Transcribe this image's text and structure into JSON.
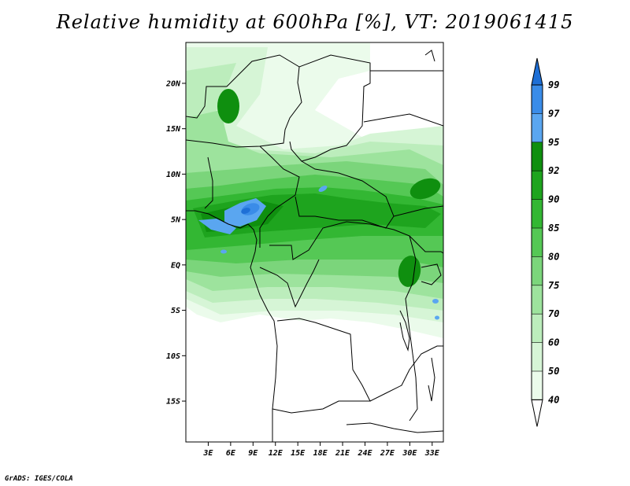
{
  "title": "Relative humidity at 600hPa [%], VT: 2019061415",
  "footer": "GrADS: IGES/COLA",
  "map": {
    "lon_range": [
      0,
      34.5
    ],
    "lat_range": [
      -19.5,
      24.5
    ],
    "lat_ticks": [
      {
        "value": 20,
        "label": "20N"
      },
      {
        "value": 15,
        "label": "15N"
      },
      {
        "value": 10,
        "label": "10N"
      },
      {
        "value": 5,
        "label": "5N"
      },
      {
        "value": 0,
        "label": "EQ"
      },
      {
        "value": -5,
        "label": "5S"
      },
      {
        "value": -10,
        "label": "10S"
      },
      {
        "value": -15,
        "label": "15S"
      }
    ],
    "lon_ticks": [
      {
        "value": 3,
        "label": "3E"
      },
      {
        "value": 6,
        "label": "6E"
      },
      {
        "value": 9,
        "label": "9E"
      },
      {
        "value": 12,
        "label": "12E"
      },
      {
        "value": 15,
        "label": "15E"
      },
      {
        "value": 18,
        "label": "18E"
      },
      {
        "value": 21,
        "label": "21E"
      },
      {
        "value": 24,
        "label": "24E"
      },
      {
        "value": 27,
        "label": "27E"
      },
      {
        "value": 30,
        "label": "30E"
      },
      {
        "value": 33,
        "label": "33E"
      }
    ]
  },
  "colorbar": {
    "levels": [
      "99",
      "97",
      "95",
      "92",
      "90",
      "85",
      "80",
      "75",
      "70",
      "60",
      "50",
      "40"
    ],
    "colors": [
      "#1e6fd6",
      "#3a8ce8",
      "#5aa6f0",
      "#0f8f0f",
      "#1ea41e",
      "#33b733",
      "#55c855",
      "#7bd57b",
      "#9de39d",
      "#bcedbc",
      "#d6f5d6",
      "#ebfbeb"
    ]
  },
  "field_colors": {
    "c40": "#ebfbeb",
    "c50": "#d6f5d6",
    "c60": "#bcedbc",
    "c70": "#9de39d",
    "c75": "#7bd57b",
    "c80": "#55c855",
    "c85": "#33b733",
    "c90": "#1ea41e",
    "c92": "#0f8f0f",
    "c95": "#5aa6f0",
    "c97": "#3a8ce8",
    "c99": "#1e6fd6"
  }
}
